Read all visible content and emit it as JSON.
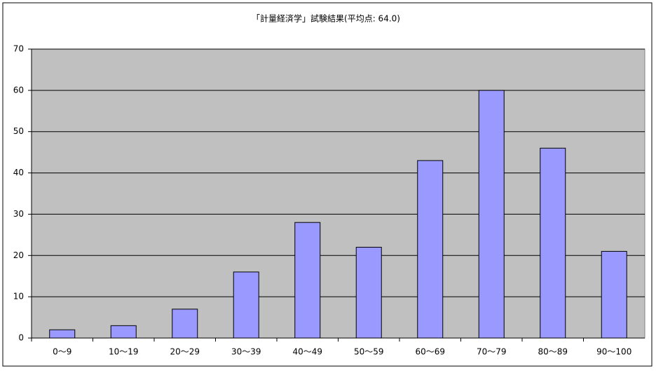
{
  "chart_data": {
    "type": "bar",
    "title": "「計量経済学」試験結果(平均点: 64.0)",
    "categories": [
      "0～9",
      "10～19",
      "20～29",
      "30～39",
      "40～49",
      "50～59",
      "60～69",
      "70～79",
      "80～89",
      "90～100"
    ],
    "values": [
      2,
      3,
      7,
      16,
      28,
      22,
      43,
      60,
      46,
      21
    ],
    "color": "#9999ff",
    "ylim": [
      0,
      70
    ],
    "yticks": [
      0,
      10,
      20,
      30,
      40,
      50,
      60,
      70
    ],
    "grid": true
  }
}
